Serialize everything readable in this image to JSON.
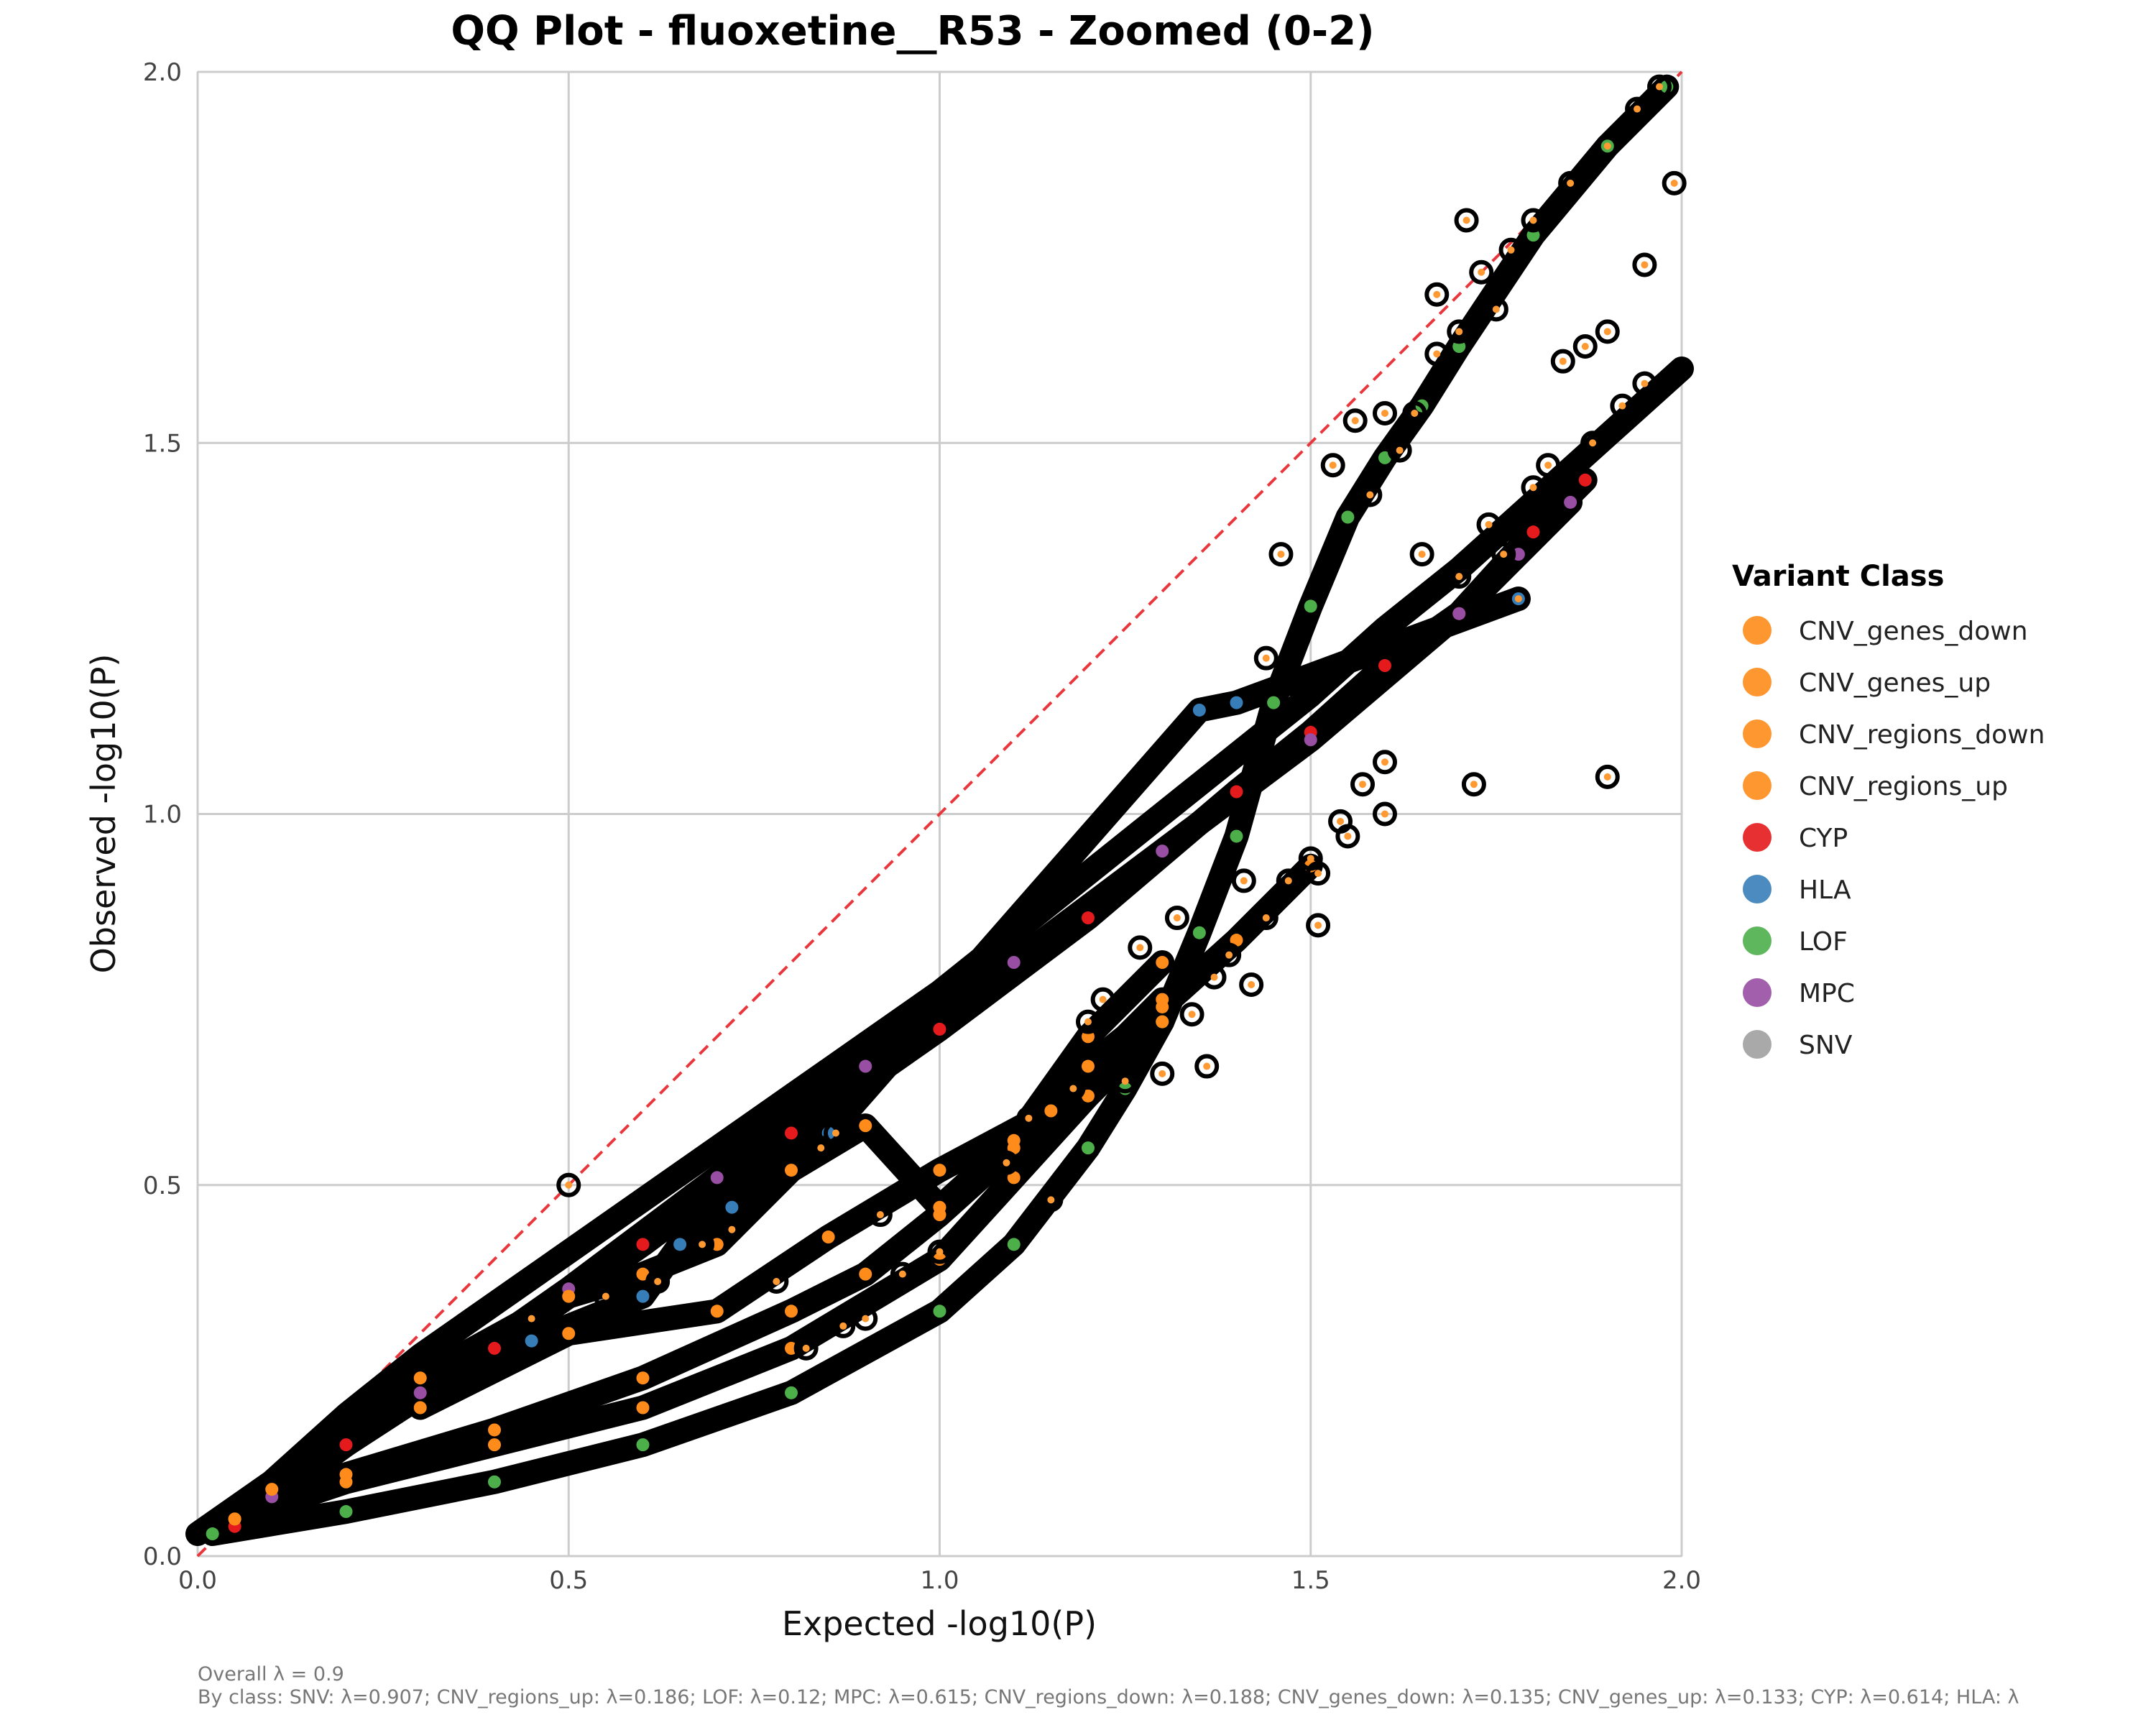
{
  "chart_data": {
    "type": "scatter",
    "title": "QQ Plot - fluoxetine__R53 - Zoomed (0-2)",
    "xlabel": "Expected -log10(P)",
    "ylabel": "Observed -log10(P)",
    "xlim": [
      0,
      2
    ],
    "ylim": [
      0,
      2
    ],
    "xticks": [
      "0.0",
      "0.5",
      "1.0",
      "1.5",
      "2.0"
    ],
    "yticks": [
      "0.0",
      "0.5",
      "1.0",
      "1.5",
      "2.0"
    ],
    "grid": true,
    "reference_line": {
      "x": [
        0,
        2
      ],
      "y": [
        0,
        2
      ],
      "style": "dashed",
      "color": "#e8383d"
    },
    "legend": {
      "title": "Variant Class",
      "placement": "right",
      "entries": [
        {
          "name": "CNV_genes_down",
          "color": "#ff8c1a"
        },
        {
          "name": "CNV_genes_up",
          "color": "#ff8c1a"
        },
        {
          "name": "CNV_regions_down",
          "color": "#ff8c1a"
        },
        {
          "name": "CNV_regions_up",
          "color": "#ff8c1a"
        },
        {
          "name": "CYP",
          "color": "#e41a1c"
        },
        {
          "name": "HLA",
          "color": "#377eb8"
        },
        {
          "name": "LOF",
          "color": "#4daf4a"
        },
        {
          "name": "MPC",
          "color": "#984ea3"
        },
        {
          "name": "SNV",
          "color": "#a0a0a0"
        }
      ]
    },
    "series": [
      {
        "name": "SNV",
        "color": "#000000",
        "x": [
          0,
          0.1,
          0.2,
          0.3,
          0.4,
          0.5,
          0.6,
          0.7,
          0.8,
          0.9,
          1.0,
          1.1,
          1.2,
          1.3,
          1.4,
          1.5,
          1.6,
          1.7,
          1.8,
          1.9,
          2.0
        ],
        "y": [
          0.03,
          0.1,
          0.19,
          0.27,
          0.34,
          0.41,
          0.48,
          0.55,
          0.62,
          0.69,
          0.76,
          0.84,
          0.92,
          1.0,
          1.08,
          1.16,
          1.25,
          1.33,
          1.42,
          1.51,
          1.6
        ]
      },
      {
        "name": "CYP",
        "color": "#e41a1c",
        "x": [
          0.05,
          0.2,
          0.4,
          0.6,
          0.8,
          1.0,
          1.2,
          1.4,
          1.5,
          1.6,
          1.7,
          1.8,
          1.87
        ],
        "y": [
          0.04,
          0.15,
          0.28,
          0.42,
          0.57,
          0.71,
          0.86,
          1.03,
          1.11,
          1.2,
          1.27,
          1.38,
          1.45
        ]
      },
      {
        "name": "MPC",
        "color": "#984ea3",
        "x": [
          0.1,
          0.3,
          0.5,
          0.7,
          0.9,
          1.1,
          1.3,
          1.5,
          1.7,
          1.78,
          1.85
        ],
        "y": [
          0.08,
          0.22,
          0.36,
          0.51,
          0.66,
          0.8,
          0.95,
          1.1,
          1.27,
          1.35,
          1.42
        ]
      },
      {
        "name": "LOF",
        "color": "#4daf4a",
        "x": [
          0.02,
          0.2,
          0.4,
          0.6,
          0.8,
          1.0,
          1.1,
          1.2,
          1.25,
          1.3,
          1.35,
          1.4,
          1.45,
          1.5,
          1.55,
          1.6,
          1.65,
          1.7,
          1.8,
          1.9,
          1.98
        ],
        "y": [
          0.03,
          0.06,
          0.1,
          0.15,
          0.22,
          0.33,
          0.42,
          0.55,
          0.63,
          0.72,
          0.84,
          0.97,
          1.15,
          1.28,
          1.4,
          1.48,
          1.55,
          1.63,
          1.78,
          1.9,
          1.98
        ]
      },
      {
        "name": "CNV_regions_up",
        "color": "#ff8c1a",
        "x": [
          0.05,
          0.2,
          0.4,
          0.6,
          0.8,
          0.9,
          1.0,
          1.1,
          1.2,
          1.3,
          1.4,
          1.5
        ],
        "y": [
          0.05,
          0.11,
          0.17,
          0.24,
          0.33,
          0.38,
          0.46,
          0.55,
          0.66,
          0.74,
          0.83,
          0.93
        ]
      },
      {
        "name": "CNV_regions_down",
        "color": "#ff8c1a",
        "x": [
          0.05,
          0.2,
          0.4,
          0.6,
          0.8,
          1.0,
          1.1,
          1.2,
          1.3
        ],
        "y": [
          0.05,
          0.1,
          0.15,
          0.2,
          0.28,
          0.4,
          0.51,
          0.62,
          0.72
        ]
      },
      {
        "name": "CNV_genes_up",
        "color": "#ff8c1a",
        "x": [
          0.1,
          0.3,
          0.5,
          0.6,
          0.7,
          0.8,
          0.9,
          1.0,
          1.1,
          1.2,
          1.3
        ],
        "y": [
          0.09,
          0.24,
          0.35,
          0.38,
          0.42,
          0.52,
          0.58,
          0.47,
          0.56,
          0.7,
          0.8
        ]
      },
      {
        "name": "CNV_genes_down",
        "color": "#ff8c1a",
        "x": [
          0.3,
          0.5,
          0.7,
          0.85,
          1.0,
          1.15,
          1.3
        ],
        "y": [
          0.2,
          0.3,
          0.33,
          0.43,
          0.52,
          0.6,
          0.75
        ]
      },
      {
        "name": "HLA",
        "color": "#377eb8",
        "x": [
          0.45,
          0.6,
          0.65,
          0.72,
          0.85,
          1.35,
          1.4,
          1.78
        ],
        "y": [
          0.29,
          0.35,
          0.42,
          0.47,
          0.57,
          1.14,
          1.15,
          1.29
        ]
      }
    ],
    "highlighted_points": [
      {
        "x": 1.67,
        "y": 1.7
      },
      {
        "x": 1.87,
        "y": 1.63
      },
      {
        "x": 1.71,
        "y": 1.8
      },
      {
        "x": 1.99,
        "y": 1.85
      },
      {
        "x": 1.95,
        "y": 1.74
      },
      {
        "x": 1.75,
        "y": 1.68
      },
      {
        "x": 1.84,
        "y": 1.61
      },
      {
        "x": 1.9,
        "y": 1.65
      },
      {
        "x": 1.53,
        "y": 1.47
      },
      {
        "x": 1.56,
        "y": 1.53
      },
      {
        "x": 1.6,
        "y": 1.54
      },
      {
        "x": 1.46,
        "y": 1.35
      },
      {
        "x": 1.65,
        "y": 1.35
      },
      {
        "x": 1.78,
        "y": 1.29
      },
      {
        "x": 1.44,
        "y": 1.21
      },
      {
        "x": 1.72,
        "y": 1.04
      },
      {
        "x": 1.9,
        "y": 1.05
      },
      {
        "x": 1.6,
        "y": 1.07
      },
      {
        "x": 1.57,
        "y": 1.04
      },
      {
        "x": 1.6,
        "y": 1.0
      },
      {
        "x": 1.54,
        "y": 0.99
      },
      {
        "x": 1.55,
        "y": 0.97
      },
      {
        "x": 1.51,
        "y": 0.92
      },
      {
        "x": 1.5,
        "y": 0.94
      },
      {
        "x": 1.47,
        "y": 0.91
      },
      {
        "x": 1.41,
        "y": 0.91
      },
      {
        "x": 1.44,
        "y": 0.86
      },
      {
        "x": 1.51,
        "y": 0.85
      },
      {
        "x": 1.39,
        "y": 0.81
      },
      {
        "x": 1.42,
        "y": 0.77
      },
      {
        "x": 1.3,
        "y": 0.65
      },
      {
        "x": 1.36,
        "y": 0.66
      },
      {
        "x": 1.25,
        "y": 0.64
      },
      {
        "x": 1.2,
        "y": 0.72
      },
      {
        "x": 1.15,
        "y": 0.48
      },
      {
        "x": 1.0,
        "y": 0.41
      },
      {
        "x": 0.95,
        "y": 0.38
      },
      {
        "x": 0.9,
        "y": 0.32
      },
      {
        "x": 0.87,
        "y": 0.31
      },
      {
        "x": 0.82,
        "y": 0.28
      },
      {
        "x": 0.72,
        "y": 0.44
      },
      {
        "x": 0.68,
        "y": 0.42
      },
      {
        "x": 0.62,
        "y": 0.37
      },
      {
        "x": 0.55,
        "y": 0.35
      },
      {
        "x": 0.5,
        "y": 0.5
      },
      {
        "x": 0.45,
        "y": 0.32
      },
      {
        "x": 0.84,
        "y": 0.55
      },
      {
        "x": 0.86,
        "y": 0.57
      },
      {
        "x": 0.78,
        "y": 0.37
      },
      {
        "x": 0.92,
        "y": 0.46
      },
      {
        "x": 1.09,
        "y": 0.53
      },
      {
        "x": 1.12,
        "y": 0.59
      },
      {
        "x": 1.18,
        "y": 0.63
      },
      {
        "x": 1.22,
        "y": 0.75
      },
      {
        "x": 1.27,
        "y": 0.82
      },
      {
        "x": 1.32,
        "y": 0.86
      },
      {
        "x": 1.37,
        "y": 0.78
      },
      {
        "x": 1.34,
        "y": 0.73
      },
      {
        "x": 1.8,
        "y": 1.44
      },
      {
        "x": 1.82,
        "y": 1.47
      },
      {
        "x": 1.74,
        "y": 1.39
      },
      {
        "x": 1.7,
        "y": 1.32
      },
      {
        "x": 1.76,
        "y": 1.35
      },
      {
        "x": 1.88,
        "y": 1.5
      },
      {
        "x": 1.92,
        "y": 1.55
      },
      {
        "x": 1.95,
        "y": 1.58
      },
      {
        "x": 1.8,
        "y": 1.8
      },
      {
        "x": 1.85,
        "y": 1.85
      },
      {
        "x": 1.9,
        "y": 1.9
      },
      {
        "x": 1.94,
        "y": 1.95
      },
      {
        "x": 1.97,
        "y": 1.98
      },
      {
        "x": 1.73,
        "y": 1.73
      },
      {
        "x": 1.77,
        "y": 1.76
      },
      {
        "x": 1.67,
        "y": 1.62
      },
      {
        "x": 1.7,
        "y": 1.65
      },
      {
        "x": 1.58,
        "y": 1.43
      },
      {
        "x": 1.62,
        "y": 1.49
      },
      {
        "x": 1.64,
        "y": 1.54
      }
    ],
    "footer": {
      "overall": "Overall λ = 0.9",
      "by_class": "By class: SNV: λ=0.907; CNV_regions_up: λ=0.186; LOF: λ=0.12; MPC: λ=0.615; CNV_regions_down: λ=0.188; CNV_genes_down: λ=0.135; CNV_genes_up: λ=0.133; CYP: λ=0.614; HLA: λ"
    }
  }
}
